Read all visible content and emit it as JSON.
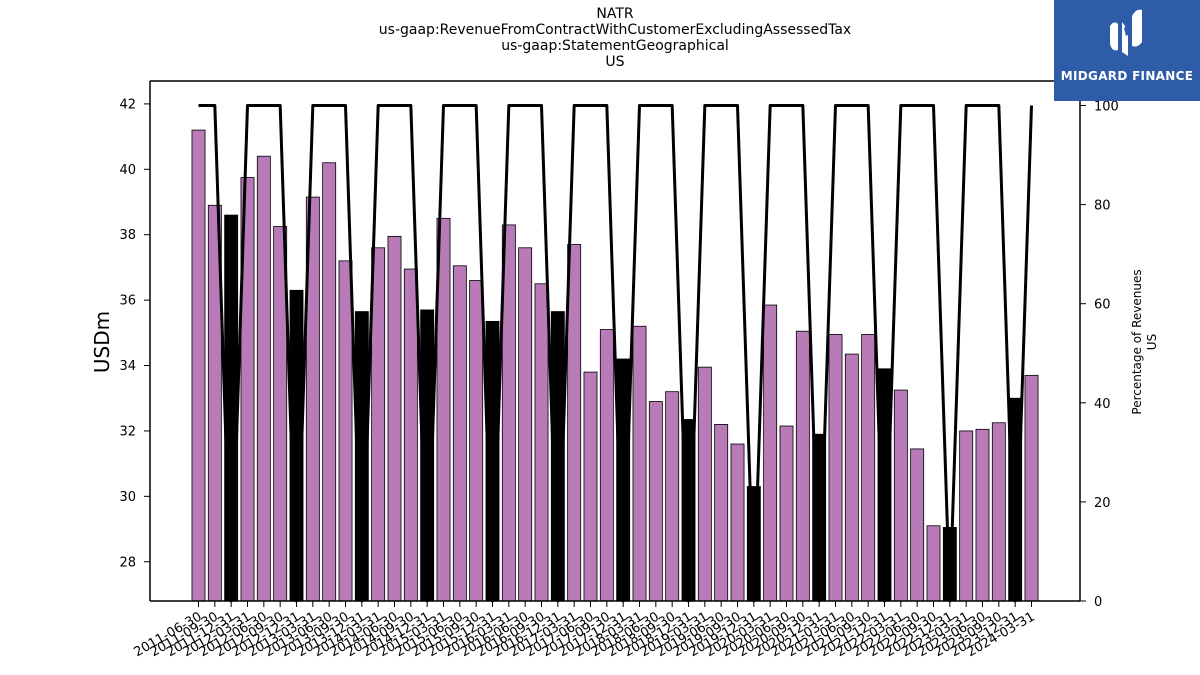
{
  "titles": {
    "line1": "NATR",
    "line2": "us-gaap:RevenueFromContractWithCustomerExcludingAssessedTax",
    "line3": "us-gaap:StatementGeographical",
    "line4": "US"
  },
  "logo": {
    "text": "MIDGARD FINANCE",
    "icon": "midgard-logo-icon",
    "background": "#2f5ca8"
  },
  "colors": {
    "bar_regular": "#b87bb8",
    "bar_highlight": "#000000",
    "line": "#000000"
  },
  "chart_data": {
    "type": "bar",
    "ylabel": "USDm",
    "y2label_line1": "Percentage of Revenues",
    "y2label_line2": "US",
    "ylim": [
      26.8,
      42.7
    ],
    "y2lim": [
      0,
      100
    ],
    "yticks": [
      28,
      30,
      32,
      34,
      36,
      38,
      40,
      42
    ],
    "y2ticks": [
      0,
      20,
      40,
      60,
      80,
      100
    ],
    "categories": [
      "2011-06-30",
      "2011-09-30",
      "2011-12-31",
      "2012-03-31",
      "2012-06-30",
      "2012-09-30",
      "2012-12-31",
      "2013-03-31",
      "2013-06-30",
      "2013-09-30",
      "2013-12-31",
      "2014-03-31",
      "2014-06-30",
      "2014-09-30",
      "2014-12-31",
      "2015-03-31",
      "2015-06-30",
      "2015-09-30",
      "2015-12-31",
      "2016-03-31",
      "2016-06-30",
      "2016-09-30",
      "2016-12-31",
      "2017-03-31",
      "2017-06-30",
      "2017-09-30",
      "2017-12-31",
      "2018-03-31",
      "2018-06-30",
      "2018-09-30",
      "2018-12-31",
      "2019-03-31",
      "2019-06-30",
      "2019-09-30",
      "2019-12-31",
      "2020-03-31",
      "2020-06-30",
      "2020-09-30",
      "2020-12-31",
      "2021-03-31",
      "2021-06-30",
      "2021-09-30",
      "2021-12-31",
      "2022-03-31",
      "2022-06-30",
      "2022-09-30",
      "2022-12-31",
      "2023-03-31",
      "2023-06-30",
      "2023-09-30",
      "2023-12-31",
      "2024-03-31"
    ],
    "tick_labels": [
      "2011-06-30",
      "2011-09-30",
      "2011-12-31",
      "2012-03-31",
      "2012-06-30",
      "2012-09-30",
      "2012-12-31",
      "2013-03-31",
      "2013-06-30",
      "2013-09-30",
      "2013-12-31",
      "2014-03-31",
      "2014-06-30",
      "2014-09-30",
      "2014-12-31",
      "2015-03-31",
      "2015-06-30",
      "2015-09-30",
      "2015-12-31",
      "2016-03-31",
      "2016-06-30",
      "2016-09-30",
      "2016-12-31",
      "2017-03-31",
      "2017-06-30",
      "2017-09-30",
      "2017-12-31",
      "2018-03-31",
      "2018-06-30",
      "2018-09-30",
      "2018-12-31",
      "2019-03-31",
      "2019-06-30",
      "2019-09-30",
      "2019-12-31",
      "2020-03-31",
      "2020-06-30",
      "2020-09-30",
      "2020-12-31",
      "2021-03-31",
      "2021-06-30",
      "2021-09-30",
      "2021-12-31",
      "2022-03-31",
      "2022-06-30",
      "2022-09-30",
      "2022-12-31",
      "2023-03-31",
      "2023-06-30",
      "2023-09-30",
      "2023-12-31",
      "2024-03-31"
    ],
    "series": [
      {
        "values": [
          41.2,
          38.9,
          38.6,
          39.75,
          40.4,
          38.25,
          36.3,
          39.15,
          40.2,
          37.2,
          35.65,
          37.6,
          37.95,
          36.95,
          35.7,
          38.5,
          37.05,
          36.6,
          35.35,
          38.3,
          37.6,
          36.5,
          35.65,
          37.7,
          33.8,
          35.1,
          34.2,
          35.2,
          32.9,
          33.2,
          32.35,
          33.95,
          32.2,
          31.6,
          30.3,
          35.85,
          32.15,
          35.05,
          31.9,
          34.95,
          34.35,
          34.95,
          33.9,
          33.25,
          31.45,
          29.1,
          29.05,
          32.0,
          32.05,
          32.25,
          33.0,
          33.7
        ]
      },
      {
        "values": [
          100,
          100,
          0,
          100,
          100,
          100,
          0,
          100,
          100,
          100,
          0,
          100,
          100,
          100,
          0,
          100,
          100,
          100,
          0,
          100,
          100,
          100,
          0,
          100,
          100,
          100,
          0,
          100,
          100,
          100,
          0,
          100,
          100,
          100,
          0,
          100,
          100,
          100,
          0,
          100,
          100,
          100,
          0,
          100,
          100,
          100,
          0,
          100,
          100,
          100,
          0,
          100
        ]
      }
    ],
    "highlight_indices": [
      2,
      6,
      10,
      14,
      18,
      22,
      26,
      30,
      34,
      38,
      42,
      46,
      50
    ],
    "grid": false,
    "legend": "none"
  }
}
